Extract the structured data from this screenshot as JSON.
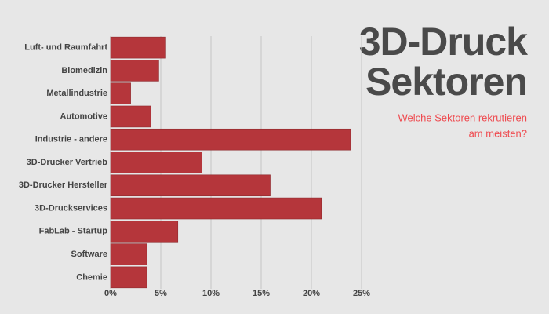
{
  "chart_data": {
    "type": "barh",
    "title": [
      "3D-Druck",
      "Sektoren"
    ],
    "subtitle": [
      "Welche Sektoren rekrutieren",
      "am meisten?"
    ],
    "categories": [
      "Luft- und Raumfahrt",
      "Biomedizin",
      "Metallindustrie",
      "Automotive",
      "Industrie - andere",
      "3D-Drucker Vertrieb",
      "3D-Drucker Hersteller",
      "3D-Druckservices",
      "FabLab - Startup",
      "Software",
      "Chemie"
    ],
    "values": [
      5.5,
      4.8,
      2.0,
      4.0,
      23.9,
      9.1,
      15.9,
      21.0,
      6.7,
      3.6,
      3.6
    ],
    "color": "#b5363b",
    "xlim": [
      0,
      25
    ],
    "xticks": [
      {
        "value": 0,
        "label": "0%"
      },
      {
        "value": 5,
        "label": "5%"
      },
      {
        "value": 10,
        "label": "10%"
      },
      {
        "value": 15,
        "label": "15%"
      },
      {
        "value": 20,
        "label": "20%"
      },
      {
        "value": 25,
        "label": "25%"
      }
    ],
    "grid": true
  }
}
